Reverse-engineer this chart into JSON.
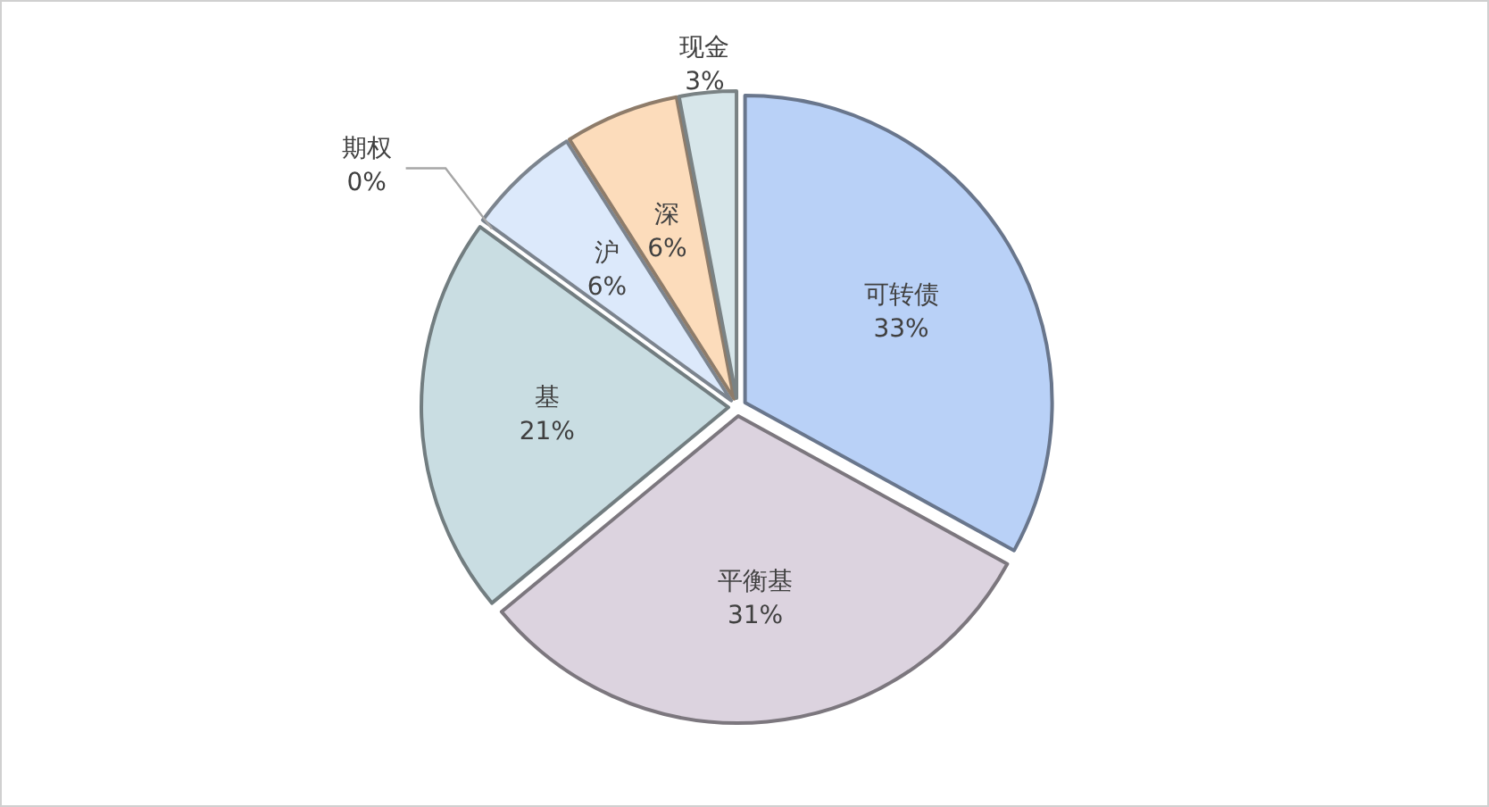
{
  "chart_data": {
    "type": "pie",
    "categories": [
      "可转债",
      "平衡基",
      "基",
      "期权",
      "沪",
      "深",
      "现金"
    ],
    "values": [
      33,
      31,
      21,
      0,
      6,
      6,
      3
    ],
    "value_labels": [
      "33%",
      "31%",
      "21%",
      "0%",
      "6%",
      "6%",
      "3%"
    ],
    "colors": [
      "#b9d1f7",
      "#dcd3df",
      "#c9dde2",
      "#a6a6a6",
      "#dce9fb",
      "#fcdcbb",
      "#d7e6ea"
    ]
  }
}
